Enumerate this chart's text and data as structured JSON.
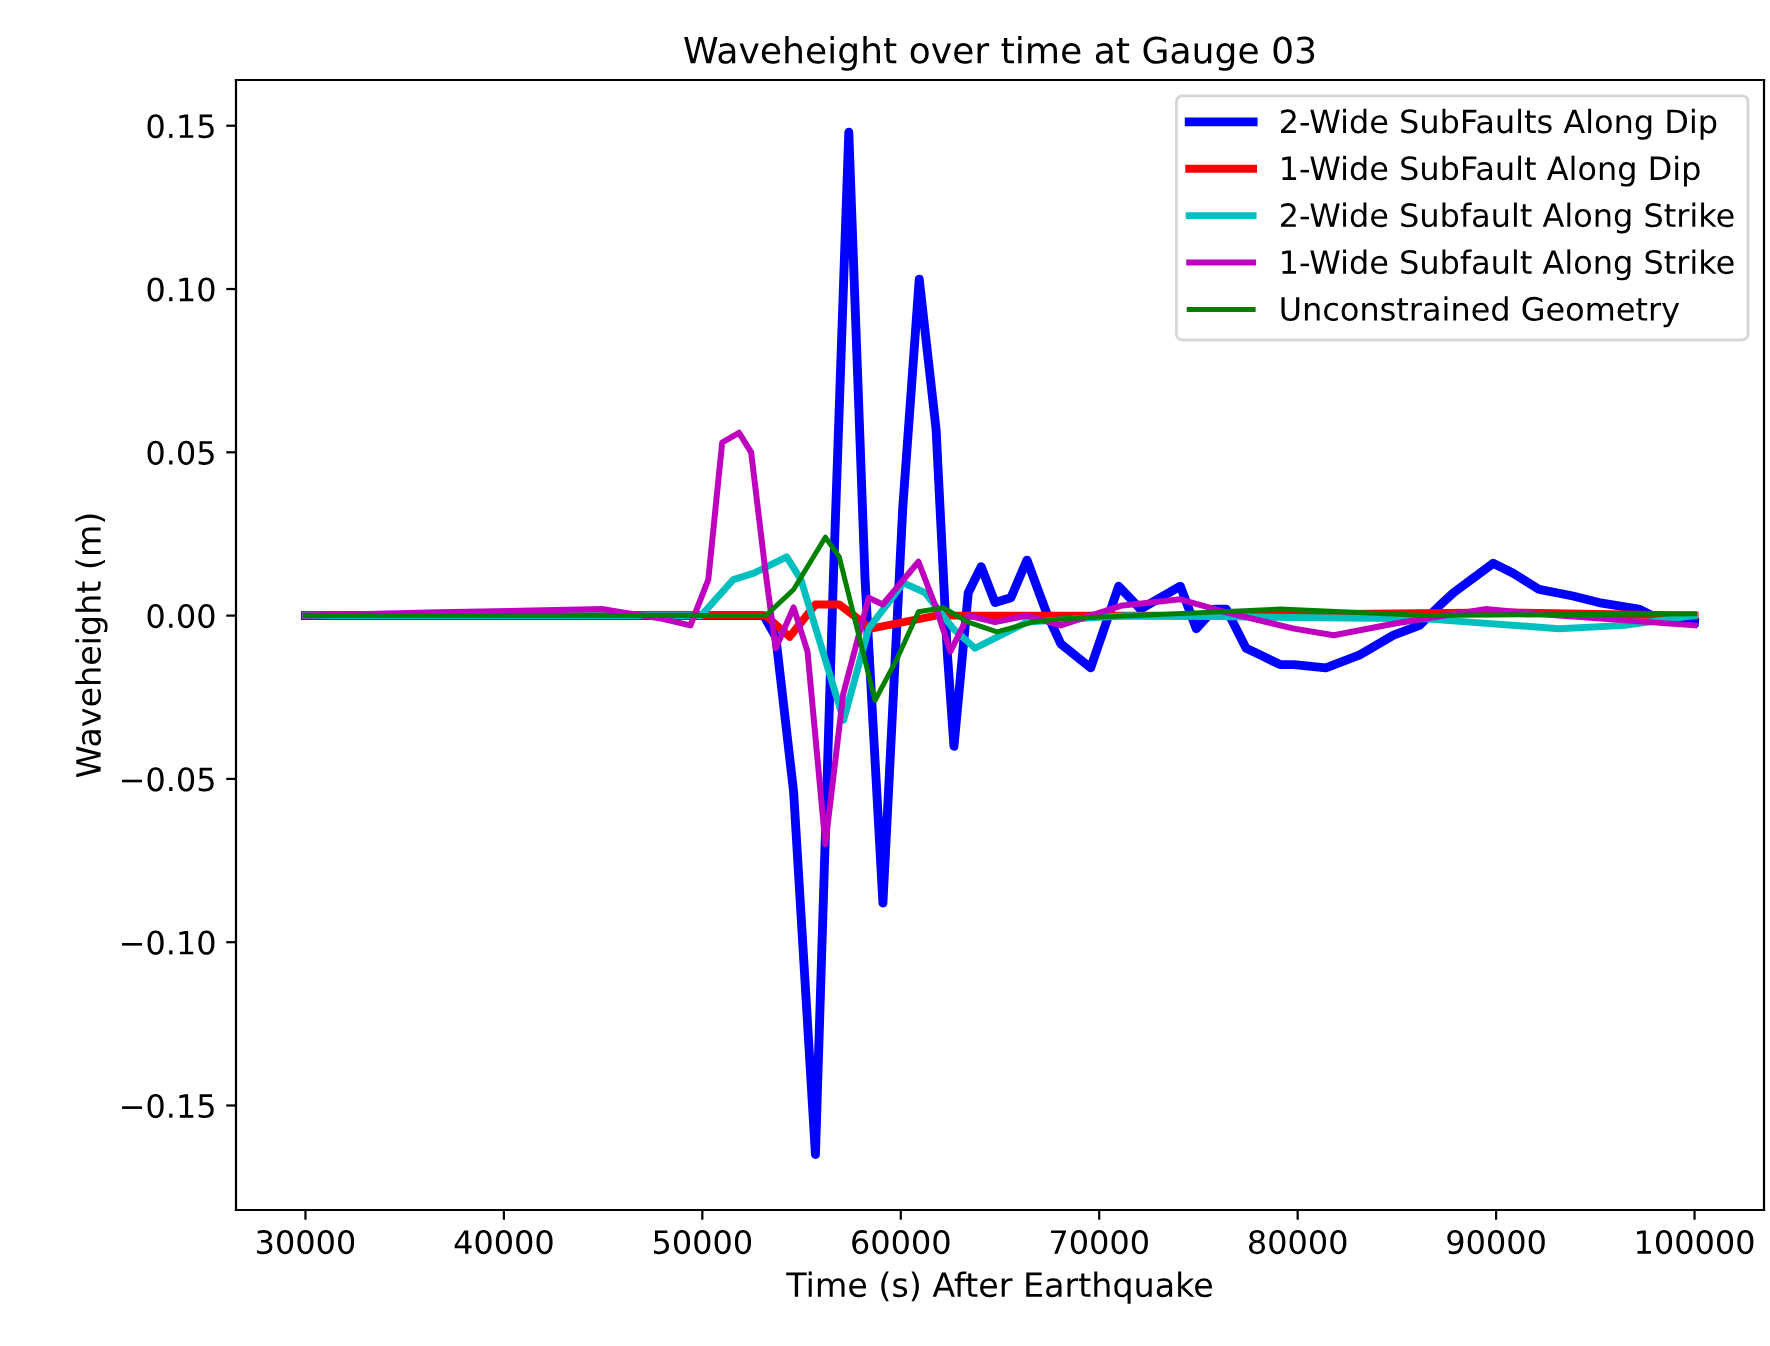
{
  "chart_data": {
    "type": "line",
    "title": "Waveheight over time at Gauge 03",
    "xlabel": "Time (s) After Earthquake",
    "ylabel": "Waveheight (m)",
    "xlim": [
      26500,
      103500
    ],
    "ylim": [
      -0.182,
      0.164
    ],
    "xticks": [
      30000,
      40000,
      50000,
      60000,
      70000,
      80000,
      90000,
      100000
    ],
    "yticks": [
      {
        "value": -0.15,
        "label": "−0.15"
      },
      {
        "value": -0.1,
        "label": "−0.10"
      },
      {
        "value": -0.05,
        "label": "−0.05"
      },
      {
        "value": 0,
        "label": "0.00"
      },
      {
        "value": 0.05,
        "label": "0.05"
      },
      {
        "value": 0.1,
        "label": "0.10"
      },
      {
        "value": 0.15,
        "label": "0.15"
      }
    ],
    "grid": false,
    "legend": "top right",
    "marker": "none",
    "line_style": "solid",
    "series": [
      {
        "name": "2-Wide SubFaults Along Dip",
        "color": "#0000ff",
        "x": [
          30000,
          53100,
          53700,
          54600,
          55700,
          56600,
          57380,
          58200,
          59100,
          60100,
          60930,
          61780,
          62340,
          62680,
          63400,
          64050,
          64750,
          65550,
          66360,
          67360,
          68060,
          69570,
          70980,
          72080,
          74090,
          74890,
          75800,
          76400,
          77400,
          78100,
          79110,
          79810,
          81420,
          83130,
          84830,
          86140,
          87140,
          87850,
          89850,
          90860,
          92170,
          93870,
          95180,
          97190,
          98200,
          100000
        ],
        "values": [
          0,
          0,
          -0.0065,
          -0.054,
          -0.165,
          0.011,
          0.148,
          0.011,
          -0.088,
          0.033,
          0.103,
          0.057,
          -0.011,
          -0.04,
          0.007,
          0.015,
          0.004,
          0.0055,
          0.017,
          0.0006,
          -0.0086,
          -0.016,
          0.009,
          0.002,
          0.009,
          -0.004,
          0.002,
          0.002,
          -0.01,
          -0.012,
          -0.015,
          -0.015,
          -0.016,
          -0.012,
          -0.006,
          -0.003,
          0.003,
          0.007,
          0.016,
          0.013,
          0.008,
          0.006,
          0.004,
          0.002,
          -0.001,
          -0.002
        ]
      },
      {
        "name": "1-Wide SubFault Along Dip",
        "color": "#ff0000",
        "x": [
          30000,
          53200,
          54400,
          55700,
          56900,
          58500,
          60130,
          61780,
          66000,
          75000,
          90000,
          100000
        ],
        "values": [
          0,
          0,
          -0.0065,
          0.0034,
          0.0034,
          -0.004,
          -0.002,
          0,
          0,
          0,
          0.001,
          0
        ]
      },
      {
        "name": "2-Wide Subfault Along Strike",
        "color": "#00bfbf",
        "x": [
          30000,
          49940,
          51560,
          52600,
          54250,
          54970,
          57120,
          58380,
          60130,
          61230,
          62640,
          63740,
          66360,
          71380,
          86440,
          93170,
          96490,
          100000
        ],
        "values": [
          0,
          0,
          0.011,
          0.013,
          0.018,
          0.011,
          -0.032,
          -0.004,
          0.01,
          0.007,
          -0.004,
          -0.01,
          -0.002,
          0,
          -0.001,
          -0.004,
          -0.003,
          0
        ]
      },
      {
        "name": "1-Wide Subfault Along Strike",
        "color": "#bf00bf",
        "x": [
          30000,
          36700,
          45000,
          48000,
          49400,
          50300,
          51000,
          51850,
          52460,
          53180,
          53700,
          54600,
          55300,
          56200,
          57100,
          58380,
          59090,
          60890,
          61780,
          62500,
          63400,
          64750,
          66360,
          68060,
          71080,
          74090,
          76400,
          79810,
          81820,
          84830,
          89450,
          93170,
          100000
        ],
        "values": [
          0,
          0.001,
          0.002,
          -0.001,
          -0.003,
          0.011,
          0.053,
          0.056,
          0.05,
          0.0135,
          -0.01,
          0.0025,
          -0.011,
          -0.07,
          -0.024,
          0.0055,
          0.0034,
          0.0165,
          0.0024,
          -0.011,
          0,
          -0.002,
          0,
          -0.003,
          0.003,
          0.005,
          0.001,
          -0.004,
          -0.006,
          -0.0025,
          0.002,
          0,
          -0.003
        ]
      },
      {
        "name": "Unconstrained Geometry",
        "color": "#008000",
        "x": [
          30000,
          53200,
          54600,
          56200,
          56900,
          58700,
          59830,
          60890,
          62140,
          63400,
          64850,
          66630,
          68060,
          79110,
          86440,
          100000
        ],
        "values": [
          0,
          0,
          0.008,
          0.024,
          0.018,
          -0.026,
          -0.013,
          0.0012,
          0.0024,
          -0.002,
          -0.005,
          -0.002,
          -0.001,
          0.002,
          0,
          0.0006
        ]
      }
    ]
  }
}
